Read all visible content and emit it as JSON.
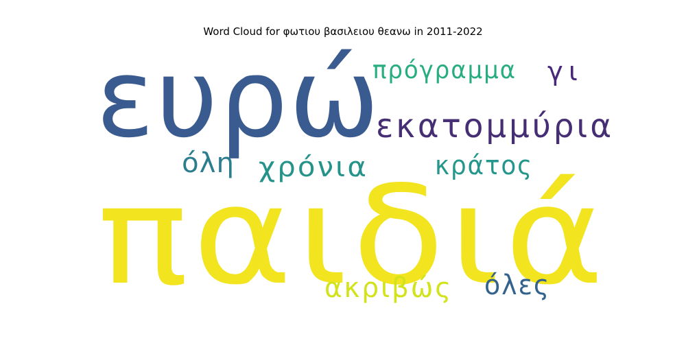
{
  "chart_data": {
    "type": "wordcloud",
    "title": "Word Cloud for φωτιου βασιλειου θεανω in 2011-2022",
    "words": [
      {
        "text": "παιδιά",
        "color": "#f2e41f"
      },
      {
        "text": "ευρώ",
        "color": "#3a5b8f"
      },
      {
        "text": "εκατομμύρια",
        "color": "#462e74"
      },
      {
        "text": "πρόγραμμα",
        "color": "#27ad7f"
      },
      {
        "text": "γι",
        "color": "#482878"
      },
      {
        "text": "όλη",
        "color": "#2c7d8e"
      },
      {
        "text": "χρόνια",
        "color": "#26938a"
      },
      {
        "text": "κράτος",
        "color": "#25968b"
      },
      {
        "text": "ακριβώς",
        "color": "#d2e21b"
      },
      {
        "text": "όλες",
        "color": "#33628d"
      }
    ]
  }
}
